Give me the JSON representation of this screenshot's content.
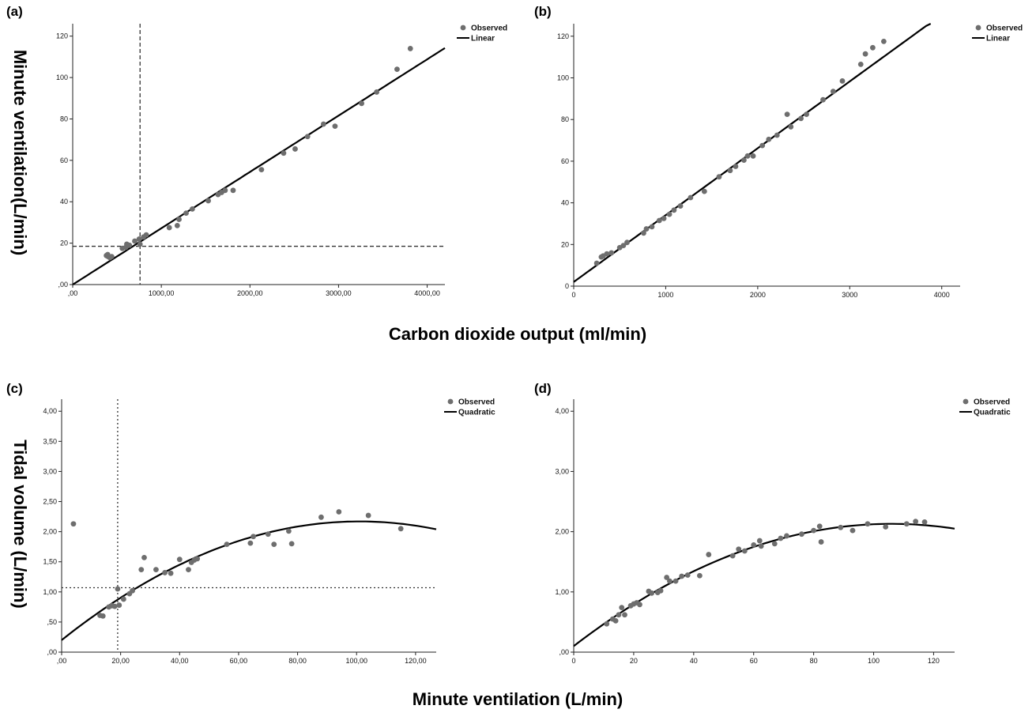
{
  "figure": {
    "top_xlabel": "Carbon dioxide output (ml/min)",
    "bottom_xlabel": "Minute ventilation (L/min)",
    "top_ylabel": "Minute ventilation(L/min)",
    "bottom_ylabel": "Tidal volume (L/min)"
  },
  "chart_data": [
    {
      "panel": "(a)",
      "type": "scatter",
      "legend": [
        "Observed",
        "Linear"
      ],
      "legend_position": "top-right",
      "xlim": [
        0,
        4200
      ],
      "ylim": [
        0,
        126
      ],
      "x_ticks": [
        0,
        1000,
        2000,
        3000,
        4000
      ],
      "x_tick_labels": [
        ",00",
        "1000,00",
        "2000,00",
        "3000,00",
        "4000,00"
      ],
      "y_ticks": [
        0,
        20,
        40,
        60,
        80,
        100,
        120
      ],
      "y_tick_labels": [
        ",00",
        "20",
        "40",
        "60",
        "80",
        "100",
        "120"
      ],
      "fit": {
        "kind": "linear",
        "x_start": 0,
        "x_end": 4200,
        "intercept": 0,
        "slope": 0.0272
      },
      "reference_lines": {
        "x": 760,
        "y": 18.5
      },
      "points": [
        [
          380,
          14
        ],
        [
          395,
          14.5
        ],
        [
          400,
          13.5
        ],
        [
          420,
          13
        ],
        [
          440,
          13.5
        ],
        [
          560,
          17.5
        ],
        [
          600,
          18
        ],
        [
          610,
          19.5
        ],
        [
          640,
          19
        ],
        [
          700,
          21
        ],
        [
          750,
          22
        ],
        [
          760,
          19.5
        ],
        [
          800,
          23
        ],
        [
          830,
          24
        ],
        [
          1090,
          27.5
        ],
        [
          1180,
          28.5
        ],
        [
          1200,
          31.5
        ],
        [
          1280,
          34.5
        ],
        [
          1350,
          36.5
        ],
        [
          1530,
          40.5
        ],
        [
          1640,
          43.5
        ],
        [
          1680,
          44.5
        ],
        [
          1720,
          45.5
        ],
        [
          1810,
          45.5
        ],
        [
          2130,
          55.5
        ],
        [
          2380,
          63.5
        ],
        [
          2510,
          65.5
        ],
        [
          2650,
          71.5
        ],
        [
          2830,
          77.5
        ],
        [
          2960,
          76.5
        ],
        [
          3260,
          87.5
        ],
        [
          3430,
          93
        ],
        [
          3660,
          104
        ],
        [
          3810,
          114
        ]
      ]
    },
    {
      "panel": "(b)",
      "type": "scatter",
      "legend": [
        "Observed",
        "Linear"
      ],
      "legend_position": "top-right",
      "xlim": [
        0,
        4200
      ],
      "ylim": [
        0,
        126
      ],
      "x_ticks": [
        0,
        1000,
        2000,
        3000,
        4000
      ],
      "x_tick_labels": [
        "0",
        "1000",
        "2000",
        "3000",
        "4000"
      ],
      "y_ticks": [
        0,
        20,
        40,
        60,
        80,
        100,
        120
      ],
      "y_tick_labels": [
        "0",
        "20",
        "40",
        "60",
        "80",
        "100",
        "120"
      ],
      "fit": {
        "kind": "linear",
        "x_start": 0,
        "x_end": 3880,
        "intercept": 2,
        "slope": 0.0321
      },
      "points": [
        [
          250,
          11
        ],
        [
          300,
          14
        ],
        [
          320,
          14.5
        ],
        [
          360,
          15.5
        ],
        [
          410,
          16
        ],
        [
          500,
          18.5
        ],
        [
          540,
          19.5
        ],
        [
          580,
          21
        ],
        [
          760,
          25.5
        ],
        [
          790,
          27.5
        ],
        [
          850,
          28.5
        ],
        [
          930,
          31.5
        ],
        [
          980,
          32.5
        ],
        [
          1040,
          34.5
        ],
        [
          1090,
          36.5
        ],
        [
          1160,
          38.5
        ],
        [
          1270,
          42.5
        ],
        [
          1420,
          45.5
        ],
        [
          1580,
          52.5
        ],
        [
          1700,
          55.5
        ],
        [
          1760,
          57.5
        ],
        [
          1850,
          60.5
        ],
        [
          1890,
          62.5
        ],
        [
          1950,
          62.5
        ],
        [
          2050,
          67.5
        ],
        [
          2120,
          70.5
        ],
        [
          2210,
          72.5
        ],
        [
          2320,
          82.5
        ],
        [
          2360,
          76.5
        ],
        [
          2470,
          80.5
        ],
        [
          2530,
          82.5
        ],
        [
          2710,
          89.5
        ],
        [
          2820,
          93.5
        ],
        [
          2920,
          98.5
        ],
        [
          3120,
          106.5
        ],
        [
          3170,
          111.5
        ],
        [
          3250,
          114.5
        ],
        [
          3370,
          117.5
        ]
      ]
    },
    {
      "panel": "(c)",
      "type": "scatter",
      "legend": [
        "Observed",
        "Quadratic"
      ],
      "legend_position": "top-right",
      "xlim": [
        0,
        127
      ],
      "ylim": [
        0,
        4.2
      ],
      "x_ticks": [
        0,
        20,
        40,
        60,
        80,
        100,
        120
      ],
      "x_tick_labels": [
        ",00",
        "20,00",
        "40,00",
        "60,00",
        "80,00",
        "100,00",
        "120,00"
      ],
      "y_ticks": [
        0,
        0.5,
        1,
        1.5,
        2,
        2.5,
        3,
        3.5,
        4
      ],
      "y_tick_labels": [
        ",00",
        ",50",
        "1,00",
        "1,50",
        "2,00",
        "2,50",
        "3,00",
        "3,50",
        "4,00"
      ],
      "fit": {
        "kind": "quadratic",
        "x_start": 0,
        "x_end": 127,
        "vertex_x": 101,
        "vertex_y": 2.17,
        "intercept": 0.2
      },
      "reference_lines": {
        "x": 19,
        "y": 1.07
      },
      "points": [
        [
          4,
          2.13
        ],
        [
          13,
          0.61
        ],
        [
          14,
          0.6
        ],
        [
          16,
          0.75
        ],
        [
          17,
          0.77
        ],
        [
          18,
          0.76
        ],
        [
          19,
          1.05
        ],
        [
          19.5,
          0.78
        ],
        [
          21,
          0.88
        ],
        [
          23,
          0.97
        ],
        [
          24,
          1.02
        ],
        [
          27,
          1.37
        ],
        [
          28,
          1.57
        ],
        [
          32,
          1.37
        ],
        [
          35,
          1.32
        ],
        [
          37,
          1.31
        ],
        [
          40,
          1.54
        ],
        [
          43,
          1.37
        ],
        [
          44,
          1.49
        ],
        [
          45,
          1.53
        ],
        [
          46,
          1.55
        ],
        [
          56,
          1.79
        ],
        [
          64,
          1.81
        ],
        [
          65,
          1.92
        ],
        [
          70,
          1.96
        ],
        [
          72,
          1.79
        ],
        [
          77,
          2.01
        ],
        [
          78,
          1.8
        ],
        [
          88,
          2.24
        ],
        [
          94,
          2.33
        ],
        [
          104,
          2.27
        ],
        [
          115,
          2.05
        ]
      ]
    },
    {
      "panel": "(d)",
      "type": "scatter",
      "legend": [
        "Observed",
        "Quadratic"
      ],
      "legend_position": "top-right",
      "xlim": [
        0,
        127
      ],
      "ylim": [
        0,
        4.2
      ],
      "x_ticks": [
        0,
        20,
        40,
        60,
        80,
        100,
        120
      ],
      "x_tick_labels": [
        "0",
        "20",
        "40",
        "60",
        "80",
        "100",
        "120"
      ],
      "y_ticks": [
        0,
        1,
        2,
        3,
        4
      ],
      "y_tick_labels": [
        ",00",
        "1,00",
        "2,00",
        "3,00",
        "4,00"
      ],
      "fit": {
        "kind": "quadratic",
        "x_start": 0,
        "x_end": 127,
        "vertex_x": 106,
        "vertex_y": 2.13,
        "intercept": 0.1
      },
      "points": [
        [
          11,
          0.47
        ],
        [
          13,
          0.55
        ],
        [
          14,
          0.52
        ],
        [
          15,
          0.62
        ],
        [
          16,
          0.74
        ],
        [
          17,
          0.62
        ],
        [
          19,
          0.77
        ],
        [
          20,
          0.8
        ],
        [
          21,
          0.82
        ],
        [
          22,
          0.79
        ],
        [
          25,
          1.01
        ],
        [
          26,
          0.98
        ],
        [
          28,
          0.99
        ],
        [
          29,
          1.02
        ],
        [
          31,
          1.24
        ],
        [
          32,
          1.18
        ],
        [
          34,
          1.18
        ],
        [
          36,
          1.26
        ],
        [
          38,
          1.28
        ],
        [
          42,
          1.27
        ],
        [
          45,
          1.62
        ],
        [
          53,
          1.6
        ],
        [
          55,
          1.71
        ],
        [
          57,
          1.68
        ],
        [
          60,
          1.78
        ],
        [
          62,
          1.85
        ],
        [
          62.5,
          1.76
        ],
        [
          67,
          1.8
        ],
        [
          69,
          1.89
        ],
        [
          71,
          1.93
        ],
        [
          76,
          1.96
        ],
        [
          80,
          2.02
        ],
        [
          82,
          2.09
        ],
        [
          82.5,
          1.83
        ],
        [
          89,
          2.07
        ],
        [
          93,
          2.02
        ],
        [
          98,
          2.13
        ],
        [
          104,
          2.08
        ],
        [
          111,
          2.13
        ],
        [
          114,
          2.17
        ],
        [
          117,
          2.16
        ]
      ]
    }
  ]
}
